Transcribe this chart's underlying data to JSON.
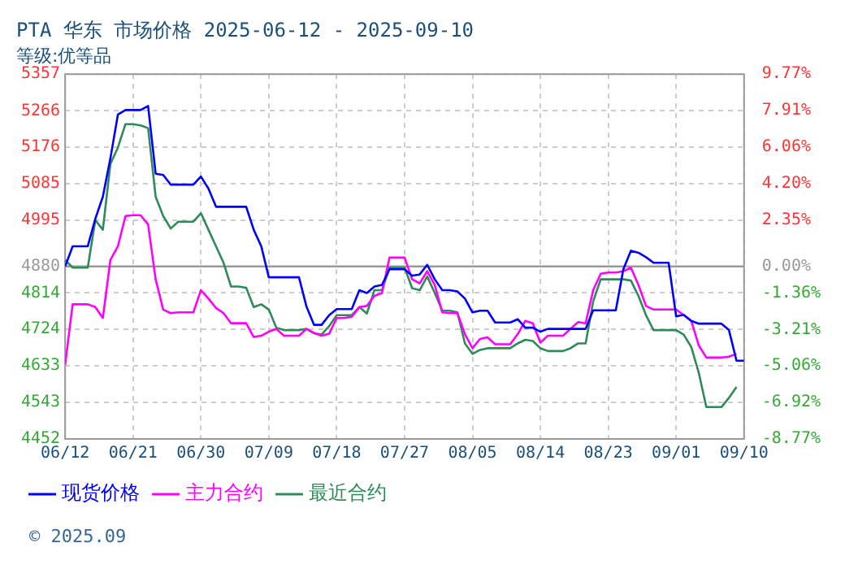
{
  "chart_data": {
    "type": "line",
    "title": "PTA 华东 市场价格 2025-06-12 - 2025-09-10",
    "subtitle": "等级:优等品",
    "x": [
      "--06-12",
      "--06-13",
      "--06-14",
      "--06-15",
      "--06-16",
      "--06-17",
      "--06-18",
      "--06-19",
      "--06-20",
      "--06-21",
      "--06-22",
      "--06-23",
      "--06-24",
      "--06-25",
      "--06-26",
      "--06-27",
      "--06-28",
      "--06-29",
      "--06-30",
      "--07-01",
      "--07-02",
      "--07-03",
      "--07-04",
      "--07-05",
      "--07-06",
      "--07-07",
      "--07-08",
      "--07-09",
      "--07-10",
      "--07-11",
      "--07-12",
      "--07-13",
      "--07-14",
      "--07-15",
      "--07-16",
      "--07-17",
      "--07-18",
      "--07-19",
      "--07-20",
      "--07-21",
      "--07-22",
      "--07-23",
      "--07-24",
      "--07-25",
      "--07-26",
      "--07-27",
      "--07-28",
      "--07-29",
      "--07-30",
      "--07-31",
      "--08-01",
      "--08-02",
      "--08-03",
      "--08-04",
      "--08-05",
      "--08-06",
      "--08-07",
      "--08-08",
      "--08-09",
      "--08-10",
      "--08-11",
      "--08-12",
      "--08-13",
      "--08-14",
      "--08-15",
      "--08-16",
      "--08-17",
      "--08-18",
      "--08-19",
      "--08-20",
      "--08-21",
      "--08-22",
      "--08-23",
      "--08-24",
      "--08-25",
      "--08-26",
      "--08-27",
      "--08-28",
      "--08-29",
      "--08-30",
      "--08-31",
      "--09-01",
      "--09-02",
      "--09-03",
      "--09-04",
      "--09-05",
      "--09-06",
      "--09-07",
      "--09-08",
      "--09-09",
      "--09-10"
    ],
    "series": [
      {
        "name": "现货价格",
        "color": "#0000ff",
        "values": [
          4880,
          4930,
          4930,
          4930,
          4998,
          5053,
          5148,
          5257,
          5268,
          5268,
          5268,
          5278,
          5110,
          5107,
          5083,
          5083,
          5083,
          5083,
          5103,
          5073,
          5028,
          5028,
          5028,
          5028,
          5028,
          4971,
          4930,
          4853,
          4853,
          4853,
          4853,
          4853,
          4780,
          4735,
          4735,
          4759,
          4774,
          4774,
          4774,
          4821,
          4814,
          4830,
          4834,
          4873,
          4873,
          4873,
          4857,
          4860,
          4884,
          4848,
          4821,
          4821,
          4818,
          4800,
          4766,
          4770,
          4770,
          4741,
          4741,
          4741,
          4749,
          4728,
          4728,
          4718,
          4725,
          4725,
          4725,
          4725,
          4725,
          4725,
          4771,
          4771,
          4771,
          4771,
          4873,
          4919,
          4914,
          4903,
          4889,
          4889,
          4889,
          4756,
          4760,
          4745,
          4738,
          4738,
          4738,
          4738,
          4722,
          4646,
          4646
        ]
      },
      {
        "name": "主力合约",
        "color": "#ff00ff",
        "values": [
          4636,
          4786,
          4786,
          4786,
          4779,
          4752,
          4896,
          4930,
          5005,
          5007,
          5007,
          4984,
          4848,
          4773,
          4764,
          4766,
          4766,
          4766,
          4821,
          4800,
          4777,
          4764,
          4739,
          4739,
          4739,
          4705,
          4708,
          4718,
          4725,
          4708,
          4708,
          4708,
          4725,
          4715,
          4708,
          4713,
          4752,
          4752,
          4755,
          4779,
          4782,
          4807,
          4814,
          4902,
          4902,
          4902,
          4848,
          4838,
          4868,
          4834,
          4766,
          4764,
          4764,
          4712,
          4677,
          4700,
          4704,
          4687,
          4687,
          4687,
          4712,
          4745,
          4739,
          4691,
          4708,
          4708,
          4708,
          4725,
          4742,
          4739,
          4821,
          4862,
          4865,
          4865,
          4868,
          4877,
          4834,
          4782,
          4773,
          4773,
          4773,
          4773,
          4759,
          4745,
          4684,
          4654,
          4654,
          4654,
          4656,
          4663,
          null
        ]
      },
      {
        "name": "最近合约",
        "color": "#2e8b57",
        "values": [
          4896,
          4877,
          4877,
          4877,
          4995,
          4971,
          5134,
          5175,
          5233,
          5233,
          5230,
          5223,
          5053,
          5005,
          4974,
          4991,
          4991,
          4991,
          5012,
          4971,
          4930,
          4889,
          4830,
          4830,
          4827,
          4779,
          4786,
          4773,
          4728,
          4722,
          4722,
          4722,
          4725,
          4714,
          4711,
          4732,
          4759,
          4759,
          4759,
          4779,
          4763,
          4821,
          4821,
          4877,
          4877,
          4877,
          4826,
          4821,
          4855,
          4814,
          4770,
          4770,
          4766,
          4689,
          4663,
          4673,
          4677,
          4677,
          4677,
          4677,
          4689,
          4698,
          4695,
          4677,
          4670,
          4670,
          4670,
          4677,
          4689,
          4689,
          4793,
          4848,
          4848,
          4848,
          4848,
          4845,
          4807,
          4759,
          4722,
          4722,
          4722,
          4722,
          4711,
          4680,
          4616,
          4531,
          4531,
          4531,
          4554,
          4581,
          null
        ]
      }
    ],
    "xlim": [
      "--06-12",
      "--09-10"
    ],
    "xticks": [
      {
        "value": "--06-12",
        "label": "06/12"
      },
      {
        "value": "--06-21",
        "label": "06/21"
      },
      {
        "value": "--06-30",
        "label": "06/30"
      },
      {
        "value": "--07-09",
        "label": "07/09"
      },
      {
        "value": "--07-18",
        "label": "07/18"
      },
      {
        "value": "--07-27",
        "label": "07/27"
      },
      {
        "value": "--08-05",
        "label": "08/05"
      },
      {
        "value": "--08-14",
        "label": "08/14"
      },
      {
        "value": "--08-23",
        "label": "08/23"
      },
      {
        "value": "--09-01",
        "label": "09/01"
      },
      {
        "value": "--09-10",
        "label": "09/10"
      }
    ],
    "ylim": [
      4452,
      5357
    ],
    "yticks": [
      5357,
      5266,
      5176,
      5085,
      4995,
      4880,
      4814,
      4724,
      4633,
      4543,
      4452
    ],
    "y2lim": [
      -8.77,
      9.77
    ],
    "y2ticks": [
      {
        "value": 9.77,
        "label": "9.77%"
      },
      {
        "value": 7.91,
        "label": "7.91%"
      },
      {
        "value": 6.06,
        "label": "6.06%"
      },
      {
        "value": 4.2,
        "label": "4.20%"
      },
      {
        "value": 2.35,
        "label": "2.35%"
      },
      {
        "value": 0,
        "label": "0.00%"
      },
      {
        "value": -1.36,
        "label": "-1.36%"
      },
      {
        "value": -3.21,
        "label": "-3.21%"
      },
      {
        "value": -5.06,
        "label": "-5.06%"
      },
      {
        "value": -6.92,
        "label": "-6.92%"
      },
      {
        "value": -8.77,
        "label": "-8.77%"
      }
    ],
    "ref_lines": [
      {
        "axis": "y",
        "value": 4880,
        "color": "#999999"
      }
    ],
    "annotations": [
      "© 2025.09"
    ],
    "grid": true,
    "legend": "bottom",
    "marker": "none",
    "line_style": "solid"
  }
}
